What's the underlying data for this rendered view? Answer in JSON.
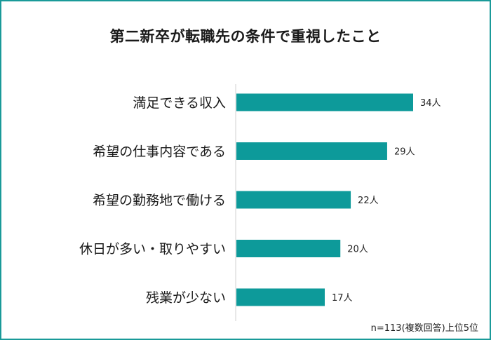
{
  "title": "第二新卒が転職先の条件で重視したこと",
  "note": "n=113(複数回答)上位5位",
  "chart_data": {
    "type": "bar",
    "orientation": "horizontal",
    "title": "第二新卒が転職先の条件で重視したこと",
    "categories": [
      "満足できる収入",
      "希望の仕事内容である",
      "希望の勤務地で働ける",
      "休日が多い・取りやすい",
      "残業が少ない"
    ],
    "values": [
      34,
      29,
      22,
      20,
      17
    ],
    "value_labels": [
      "34人",
      "29人",
      "22人",
      "20人",
      "17人"
    ],
    "bar_color": "#0d9a9a",
    "xlim": [
      0,
      40
    ],
    "xlabel": "",
    "ylabel": "",
    "grid": false,
    "legend": "none"
  }
}
